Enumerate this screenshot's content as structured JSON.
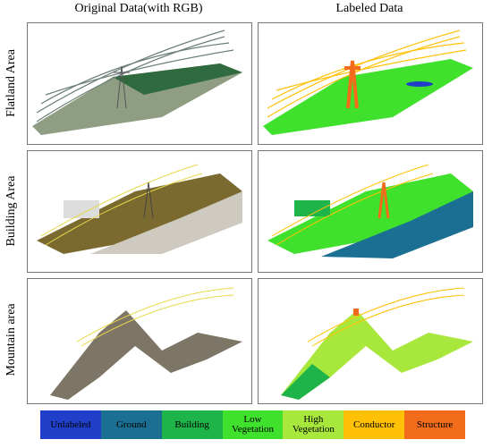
{
  "header": {
    "columns": [
      "Original Data(with RGB)",
      "Labeled Data"
    ]
  },
  "rows": [
    "Flatland Area",
    "Building Area",
    "Mountain area"
  ],
  "legend": [
    {
      "label": "Unlabeled",
      "color": "#1f3fc8"
    },
    {
      "label": "Ground",
      "color": "#1b6f92"
    },
    {
      "label": "Building",
      "color": "#1fb44a"
    },
    {
      "label": "Low Vegetation",
      "color": "#3fe12c"
    },
    {
      "label": "High Vegetation",
      "color": "#a8e83c"
    },
    {
      "label": "Conductor",
      "color": "#ffc107"
    },
    {
      "label": "Structure",
      "color": "#f26c1c"
    }
  ]
}
